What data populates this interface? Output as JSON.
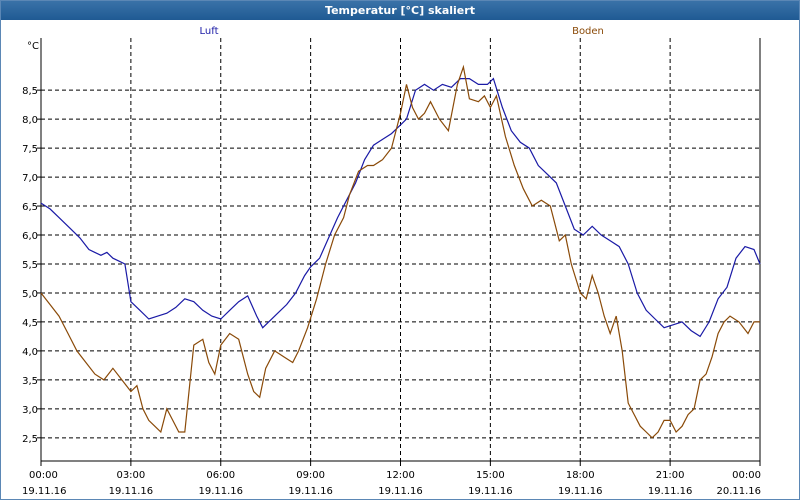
{
  "window": {
    "title": "Temperatur [°C] skaliert"
  },
  "colors": {
    "luft": "#1a1aa6",
    "boden": "#8a4a08",
    "grid": "#000000",
    "title_bg": "#2a66a0"
  },
  "chart_data": {
    "type": "line",
    "title": "Temperatur [°C] skaliert",
    "xlabel": "",
    "ylabel": "°C",
    "ylim": [
      2.1,
      9.4
    ],
    "xlim": [
      0,
      24
    ],
    "grid": true,
    "legend_placement": "top",
    "yticks": [
      "2,5",
      "3,0",
      "3,5",
      "4,0",
      "4,5",
      "5,0",
      "5,5",
      "6,0",
      "6,5",
      "7,0",
      "7,5",
      "8,0",
      "8,5"
    ],
    "ytick_values": [
      2.5,
      3.0,
      3.5,
      4.0,
      4.5,
      5.0,
      5.5,
      6.0,
      6.5,
      7.0,
      7.5,
      8.0,
      8.5
    ],
    "xticks": [
      {
        "time": "00:00",
        "date": "19.11.16",
        "h": 0
      },
      {
        "time": "03:00",
        "date": "19.11.16",
        "h": 3
      },
      {
        "time": "06:00",
        "date": "19.11.16",
        "h": 6
      },
      {
        "time": "09:00",
        "date": "19.11.16",
        "h": 9
      },
      {
        "time": "12:00",
        "date": "19.11.16",
        "h": 12
      },
      {
        "time": "15:00",
        "date": "19.11.16",
        "h": 15
      },
      {
        "time": "18:00",
        "date": "19.11.16",
        "h": 18
      },
      {
        "time": "21:00",
        "date": "19.11.16",
        "h": 21
      },
      {
        "time": "00:00",
        "date": "20.11.16",
        "h": 24
      }
    ],
    "series": [
      {
        "name": "Luft",
        "x": [
          0,
          0.3,
          0.6,
          1,
          1.3,
          1.6,
          1.8,
          2,
          2.2,
          2.4,
          2.6,
          2.8,
          3,
          3.3,
          3.6,
          3.9,
          4.2,
          4.5,
          4.8,
          5.1,
          5.4,
          5.7,
          6,
          6.3,
          6.6,
          6.9,
          7.2,
          7.4,
          7.6,
          7.9,
          8.2,
          8.5,
          8.8,
          9,
          9.3,
          9.6,
          9.9,
          10.2,
          10.5,
          10.8,
          11.1,
          11.4,
          11.7,
          12,
          12.2,
          12.5,
          12.8,
          13.1,
          13.4,
          13.7,
          14,
          14.3,
          14.6,
          14.9,
          15.1,
          15.4,
          15.7,
          16,
          16.3,
          16.6,
          16.9,
          17.2,
          17.5,
          17.8,
          18.1,
          18.4,
          18.7,
          19,
          19.3,
          19.6,
          19.9,
          20.2,
          20.5,
          20.8,
          21.1,
          21.4,
          21.7,
          22,
          22.3,
          22.6,
          22.9,
          23.2,
          23.5,
          23.8,
          24
        ],
        "y": [
          6.55,
          6.45,
          6.3,
          6.1,
          5.95,
          5.75,
          5.7,
          5.65,
          5.7,
          5.6,
          5.55,
          5.5,
          4.85,
          4.7,
          4.55,
          4.6,
          4.65,
          4.75,
          4.9,
          4.85,
          4.7,
          4.6,
          4.55,
          4.7,
          4.85,
          4.95,
          4.6,
          4.4,
          4.5,
          4.65,
          4.8,
          5.0,
          5.3,
          5.45,
          5.6,
          5.95,
          6.3,
          6.6,
          6.9,
          7.3,
          7.55,
          7.65,
          7.75,
          7.9,
          8.0,
          8.5,
          8.6,
          8.5,
          8.6,
          8.55,
          8.7,
          8.7,
          8.6,
          8.6,
          8.7,
          8.2,
          7.8,
          7.6,
          7.5,
          7.2,
          7.05,
          6.9,
          6.5,
          6.1,
          6.0,
          6.15,
          6.0,
          5.9,
          5.8,
          5.5,
          5.0,
          4.7,
          4.55,
          4.4,
          4.45,
          4.5,
          4.35,
          4.25,
          4.5,
          4.9,
          5.1,
          5.6,
          5.8,
          5.75,
          5.5
        ]
      },
      {
        "name": "Boden",
        "x": [
          0,
          0.3,
          0.6,
          0.9,
          1.2,
          1.5,
          1.8,
          2.1,
          2.4,
          2.7,
          3,
          3.2,
          3.4,
          3.6,
          3.8,
          4,
          4.2,
          4.4,
          4.6,
          4.8,
          5.1,
          5.4,
          5.6,
          5.8,
          6,
          6.3,
          6.6,
          6.9,
          7.1,
          7.3,
          7.5,
          7.8,
          8.1,
          8.4,
          8.6,
          8.9,
          9.2,
          9.5,
          9.8,
          10.1,
          10.3,
          10.6,
          10.9,
          11.1,
          11.4,
          11.7,
          12,
          12.2,
          12.4,
          12.6,
          12.8,
          13,
          13.3,
          13.6,
          13.9,
          14.1,
          14.3,
          14.6,
          14.8,
          15,
          15.2,
          15.5,
          15.8,
          16.1,
          16.4,
          16.7,
          17,
          17.3,
          17.5,
          17.7,
          18,
          18.2,
          18.4,
          18.6,
          18.8,
          19,
          19.2,
          19.4,
          19.6,
          19.8,
          20,
          20.2,
          20.4,
          20.6,
          20.8,
          21,
          21.2,
          21.4,
          21.6,
          21.8,
          22,
          22.2,
          22.4,
          22.6,
          22.8,
          23,
          23.3,
          23.6,
          23.8,
          24
        ],
        "y": [
          5.0,
          4.8,
          4.6,
          4.3,
          4.0,
          3.8,
          3.6,
          3.5,
          3.7,
          3.5,
          3.3,
          3.4,
          3.0,
          2.8,
          2.7,
          2.6,
          3.0,
          2.8,
          2.6,
          2.6,
          4.1,
          4.2,
          3.8,
          3.6,
          4.1,
          4.3,
          4.2,
          3.6,
          3.3,
          3.2,
          3.7,
          4.0,
          3.9,
          3.8,
          4.0,
          4.4,
          4.9,
          5.5,
          6.0,
          6.3,
          6.7,
          7.1,
          7.2,
          7.2,
          7.3,
          7.5,
          8.1,
          8.6,
          8.2,
          8.0,
          8.1,
          8.3,
          8.0,
          7.8,
          8.6,
          8.9,
          8.35,
          8.3,
          8.4,
          8.2,
          8.4,
          7.7,
          7.2,
          6.8,
          6.5,
          6.6,
          6.5,
          5.9,
          6.0,
          5.5,
          5.0,
          4.9,
          5.3,
          5.0,
          4.6,
          4.3,
          4.6,
          4.0,
          3.1,
          2.9,
          2.7,
          2.6,
          2.5,
          2.6,
          2.8,
          2.8,
          2.6,
          2.7,
          2.9,
          3.0,
          3.5,
          3.6,
          3.9,
          4.3,
          4.5,
          4.6,
          4.5,
          4.3,
          4.5,
          4.5
        ]
      }
    ]
  }
}
